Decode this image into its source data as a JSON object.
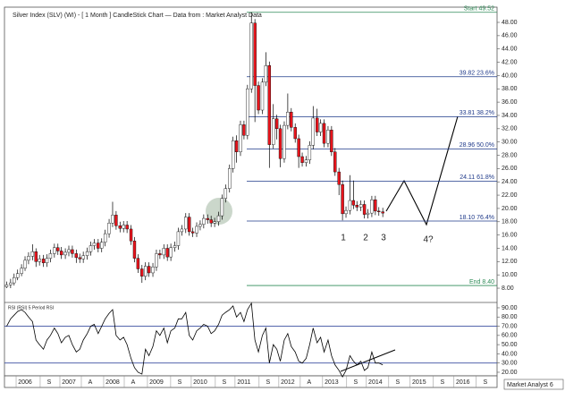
{
  "chart_data": [
    {
      "type": "candlestick",
      "title": "Silver Index (SLV) (WI) - [ 1 Month ] CandleStick Chart — Data from : Market Analyst Data",
      "footer": "Market Analyst 6",
      "x": [
        2005.58,
        2005.67,
        2005.75,
        2005.83,
        2005.92,
        2006.0,
        2006.08,
        2006.17,
        2006.25,
        2006.33,
        2006.42,
        2006.5,
        2006.58,
        2006.67,
        2006.75,
        2006.83,
        2006.92,
        2007.0,
        2007.08,
        2007.17,
        2007.25,
        2007.33,
        2007.42,
        2007.5,
        2007.58,
        2007.67,
        2007.75,
        2007.83,
        2007.92,
        2008.0,
        2008.08,
        2008.17,
        2008.25,
        2008.33,
        2008.42,
        2008.5,
        2008.58,
        2008.67,
        2008.75,
        2008.83,
        2008.92,
        2009.0,
        2009.08,
        2009.17,
        2009.25,
        2009.33,
        2009.42,
        2009.5,
        2009.58,
        2009.67,
        2009.75,
        2009.83,
        2009.92,
        2010.0,
        2010.08,
        2010.17,
        2010.25,
        2010.33,
        2010.42,
        2010.5,
        2010.58,
        2010.67,
        2010.75,
        2010.83,
        2010.92,
        2011.0,
        2011.08,
        2011.17,
        2011.25,
        2011.33,
        2011.42,
        2011.5,
        2011.58,
        2011.67,
        2011.75,
        2011.83,
        2011.92,
        2012.0,
        2012.08,
        2012.17,
        2012.25,
        2012.33,
        2012.42,
        2012.5,
        2012.58,
        2012.67,
        2012.75,
        2012.83,
        2012.92,
        2013.0,
        2013.08,
        2013.17,
        2013.25,
        2013.33,
        2013.42,
        2013.5,
        2013.58,
        2013.67,
        2013.75,
        2013.83,
        2013.92,
        2014.0,
        2014.08,
        2014.17
      ],
      "open": [
        8.2,
        8.5,
        8.8,
        9.6,
        10.2,
        11.0,
        12.2,
        12.8,
        13.5,
        12.0,
        12.4,
        11.8,
        12.5,
        13.2,
        14.1,
        13.6,
        13.0,
        13.4,
        13.8,
        13.2,
        12.6,
        12.4,
        12.9,
        13.5,
        14.4,
        14.8,
        14.0,
        14.9,
        16.2,
        17.8,
        19.0,
        17.4,
        17.0,
        17.5,
        16.9,
        15.1,
        12.5,
        10.9,
        9.8,
        11.3,
        10.3,
        11.2,
        13.2,
        13.0,
        14.0,
        12.7,
        14.1,
        14.4,
        16.5,
        16.9,
        18.7,
        16.5,
        16.3,
        17.3,
        17.6,
        18.5,
        18.3,
        17.8,
        18.0,
        18.9,
        21.5,
        23.0,
        26.0,
        30.2,
        28.5,
        32.6,
        31.0,
        38.0,
        47.9,
        38.5,
        34.8,
        39.0,
        41.5,
        29.6,
        33.5,
        32.0,
        27.5,
        32.5,
        34.5,
        32.2,
        30.5,
        27.8,
        26.9,
        27.3,
        29.5,
        33.6,
        31.5,
        32.8,
        29.8,
        31.8,
        28.5,
        25.5,
        23.6,
        19.2,
        19.7,
        21.2,
        20.5,
        20.2,
        20.6,
        19.1,
        19.3,
        21.3,
        19.6,
        19.5
      ],
      "high": [
        9.0,
        9.4,
        10.2,
        10.8,
        11.6,
        12.8,
        13.4,
        14.6,
        14.0,
        13.0,
        13.0,
        13.1,
        13.8,
        14.7,
        14.7,
        14.2,
        14.0,
        14.4,
        14.4,
        13.8,
        13.2,
        13.5,
        14.1,
        15.0,
        15.4,
        15.4,
        15.5,
        16.8,
        18.4,
        21.0,
        19.6,
        18.0,
        18.1,
        18.1,
        17.5,
        15.7,
        13.1,
        11.5,
        11.9,
        11.9,
        11.8,
        13.8,
        13.8,
        14.6,
        14.6,
        14.7,
        15.0,
        17.1,
        17.5,
        19.3,
        19.3,
        17.1,
        17.9,
        18.2,
        19.1,
        19.1,
        18.9,
        18.6,
        19.5,
        22.1,
        23.6,
        26.6,
        30.8,
        31.0,
        33.2,
        33.2,
        38.6,
        49.52,
        48.5,
        39.1,
        39.6,
        43.5,
        42.1,
        35.7,
        34.1,
        32.6,
        33.1,
        37.3,
        35.1,
        32.8,
        31.1,
        28.4,
        27.9,
        30.1,
        35.4,
        35.0,
        33.4,
        33.4,
        32.4,
        32.4,
        29.1,
        26.1,
        24.2,
        20.3,
        25.0,
        24.2,
        21.1,
        21.2,
        21.2,
        19.9,
        21.9,
        21.9,
        20.2,
        20.1
      ],
      "low": [
        8.0,
        8.0,
        8.4,
        9.2,
        9.8,
        10.6,
        11.6,
        12.2,
        11.2,
        11.4,
        11.2,
        11.2,
        11.9,
        12.6,
        13.0,
        12.4,
        12.4,
        12.8,
        12.6,
        11.8,
        11.8,
        11.8,
        12.3,
        12.9,
        13.8,
        13.4,
        13.4,
        14.3,
        15.6,
        17.2,
        16.8,
        16.4,
        16.4,
        16.3,
        14.5,
        11.9,
        10.3,
        8.8,
        9.2,
        9.7,
        9.7,
        10.6,
        12.4,
        12.4,
        12.1,
        12.1,
        13.5,
        13.8,
        15.9,
        16.3,
        15.9,
        15.7,
        15.7,
        16.7,
        17.0,
        17.7,
        17.2,
        17.2,
        17.4,
        18.3,
        20.9,
        22.4,
        25.4,
        26.9,
        27.9,
        30.4,
        30.4,
        37.4,
        33.0,
        34.2,
        34.2,
        38.4,
        26.1,
        29.0,
        30.4,
        26.2,
        26.9,
        31.9,
        31.6,
        29.9,
        26.1,
        26.3,
        26.3,
        26.7,
        28.9,
        30.9,
        30.9,
        29.2,
        29.2,
        27.9,
        24.9,
        22.0,
        18.2,
        18.6,
        19.1,
        19.9,
        19.6,
        19.6,
        18.5,
        18.5,
        18.7,
        19.0,
        18.9,
        18.7
      ],
      "close": [
        8.5,
        8.8,
        9.6,
        10.2,
        11.0,
        12.2,
        12.8,
        13.5,
        12.0,
        12.4,
        11.8,
        12.5,
        13.2,
        14.1,
        13.6,
        13.0,
        13.4,
        13.8,
        13.2,
        12.6,
        12.4,
        12.9,
        13.5,
        14.4,
        14.8,
        14.0,
        14.9,
        16.2,
        17.8,
        19.0,
        17.4,
        17.0,
        17.5,
        16.9,
        15.1,
        12.5,
        10.9,
        9.8,
        11.3,
        10.3,
        11.2,
        13.2,
        13.0,
        14.0,
        12.7,
        14.1,
        14.4,
        16.5,
        16.9,
        18.7,
        16.5,
        16.3,
        17.3,
        17.6,
        18.5,
        18.3,
        17.8,
        18.0,
        18.9,
        21.5,
        23.0,
        26.0,
        30.2,
        28.5,
        32.6,
        31.0,
        38.0,
        47.9,
        38.5,
        34.8,
        39.0,
        41.5,
        29.6,
        33.5,
        32.0,
        27.5,
        32.5,
        34.5,
        32.2,
        30.5,
        27.8,
        26.9,
        27.3,
        29.5,
        33.6,
        31.5,
        32.8,
        29.8,
        31.8,
        28.5,
        25.5,
        23.6,
        19.2,
        19.7,
        21.2,
        20.5,
        20.2,
        20.6,
        19.1,
        19.3,
        21.3,
        19.6,
        19.5,
        19.3
      ],
      "up_color": "#ffffff",
      "down_color": "#e8141c",
      "xlim": [
        2005.53,
        2016.78
      ],
      "xticks": [
        2006,
        {
          "value": 2006.55,
          "label": "S"
        },
        2007,
        {
          "value": 2007.49,
          "label": "A"
        },
        2008,
        {
          "value": 2008.47,
          "label": "A"
        },
        2009,
        {
          "value": 2009.53,
          "label": "S"
        },
        2010,
        {
          "value": 2010.55,
          "label": "S"
        },
        2011,
        {
          "value": 2011.55,
          "label": "S"
        },
        2012,
        {
          "value": 2012.49,
          "label": "A"
        },
        2013,
        {
          "value": 2013.55,
          "label": "S"
        },
        2014,
        {
          "value": 2014.51,
          "label": "S"
        },
        2015,
        {
          "value": 2015.53,
          "label": "S"
        },
        2016,
        {
          "value": 2016.51,
          "label": "S"
        }
      ],
      "ylim": [
        5.85,
        50.29
      ],
      "yticks": [
        {
          "value": 8,
          "label": "8.00"
        },
        {
          "value": 10,
          "label": "10.00"
        },
        {
          "value": 12,
          "label": "12.00"
        },
        {
          "value": 14,
          "label": "14.00"
        },
        {
          "value": 16,
          "label": "16.00"
        },
        {
          "value": 18,
          "label": "18.00"
        },
        {
          "value": 20,
          "label": "20.00"
        },
        {
          "value": 22,
          "label": "22.00"
        },
        {
          "value": 24,
          "label": "24.00"
        },
        {
          "value": 26,
          "label": "26.00"
        },
        {
          "value": 28,
          "label": "28.00"
        },
        {
          "value": 30,
          "label": "30.00"
        },
        {
          "value": 32,
          "label": "32.00"
        },
        {
          "value": 34,
          "label": "34.00"
        },
        {
          "value": 36,
          "label": "36.00"
        },
        {
          "value": 38,
          "label": "38.00"
        },
        {
          "value": 40,
          "label": "40.00"
        },
        {
          "value": 42,
          "label": "42.00"
        },
        {
          "value": 44,
          "label": "44.00"
        },
        {
          "value": 46,
          "label": "46.00"
        },
        {
          "value": 48,
          "label": "48.00"
        }
      ],
      "fib_levels": [
        {
          "value": 49.52,
          "label": "Start 49.52",
          "color": "#2e8b57"
        },
        {
          "value": 39.82,
          "label": "39.82 23.6%",
          "color": "#1f3a8a"
        },
        {
          "value": 33.81,
          "label": "33.81 38.2%",
          "color": "#1f3a8a"
        },
        {
          "value": 28.96,
          "label": "28.96 50.0%",
          "color": "#1f3a8a"
        },
        {
          "value": 24.11,
          "label": "24.11 61.8%",
          "color": "#1f3a8a"
        },
        {
          "value": 18.1,
          "label": "18.10 76.4%",
          "color": "#1f3a8a"
        },
        {
          "value": 8.4,
          "label": "End 8.40",
          "color": "#2e8b57"
        }
      ],
      "annotations": [
        "1",
        "2",
        "3",
        "4?"
      ]
    },
    {
      "type": "line",
      "title": "RSI (RSI) 5 Period RSI",
      "color": "#000000",
      "values": [
        70,
        78,
        82,
        86,
        88,
        85,
        80,
        75,
        55,
        50,
        45,
        55,
        60,
        68,
        62,
        52,
        58,
        60,
        50,
        42,
        45,
        55,
        62,
        70,
        72,
        62,
        70,
        78,
        84,
        88,
        60,
        55,
        58,
        50,
        35,
        25,
        20,
        18,
        45,
        38,
        48,
        65,
        60,
        68,
        52,
        65,
        68,
        78,
        78,
        85,
        60,
        55,
        65,
        68,
        72,
        70,
        62,
        65,
        72,
        82,
        85,
        88,
        92,
        80,
        85,
        75,
        88,
        95,
        55,
        42,
        60,
        68,
        30,
        50,
        45,
        32,
        55,
        62,
        48,
        42,
        32,
        30,
        35,
        50,
        68,
        52,
        58,
        42,
        55,
        38,
        28,
        22,
        15,
        22,
        38,
        32,
        28,
        32,
        22,
        25,
        42,
        30,
        30,
        28
      ],
      "ylim": [
        16.1,
        95.8
      ],
      "yticks": [
        {
          "value": 20,
          "label": "20.00"
        },
        {
          "value": 30,
          "label": "30.00"
        },
        {
          "value": 40,
          "label": "40.00"
        },
        {
          "value": 50,
          "label": "50.00"
        },
        {
          "value": 60,
          "label": "60.00"
        },
        {
          "value": 70,
          "label": "70.00"
        },
        {
          "value": 80,
          "label": "80.00"
        },
        {
          "value": 90,
          "label": "90.00"
        }
      ],
      "hlines": [
        70,
        30
      ],
      "hline_color": "#3b4fa0"
    }
  ]
}
